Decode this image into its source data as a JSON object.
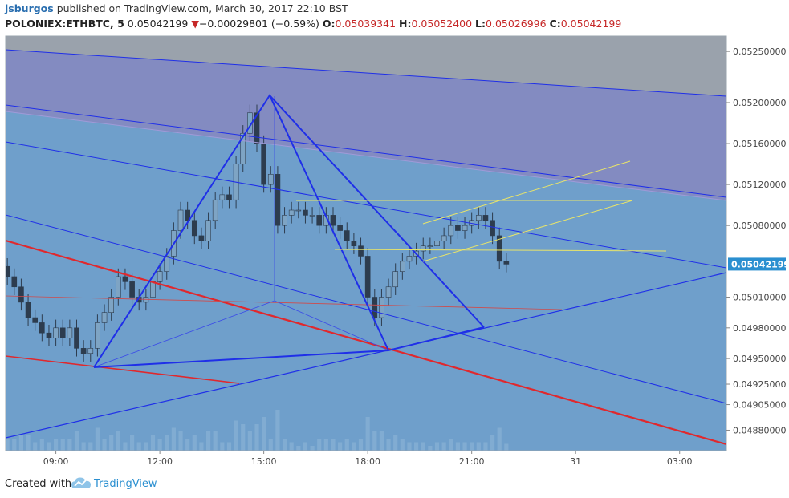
{
  "header": {
    "author": "jsburgos",
    "published_text": "published on TradingView.com, March 30, 2017 22:10 BST",
    "symbol": "POLONIEX:ETHBTC, 5",
    "last": "0.05042199",
    "change_arrow": "▼",
    "change": "−0.00029801 (−0.59%)",
    "o_label": "O:",
    "o_value": "0.05039341",
    "h_label": "H:",
    "h_value": "0.05052400",
    "l_label": "L:",
    "l_value": "0.05026996",
    "c_label": "C:",
    "c_value": "0.05042199"
  },
  "footer": {
    "created_with": "Created with",
    "brand": "TradingView",
    "logo_icon": "tradingview-cloud-icon"
  },
  "colors": {
    "pane_bg": "#6f9fcb",
    "channel_fill": "#8a84be",
    "gray_band": "#9aa2ac",
    "drawing_blue": "#1f2fe8",
    "drawing_red": "#e0282d",
    "trend_yellow": "#e8e46a",
    "candle_up": "#7ea4c4",
    "candle_down": "#2d3c4e",
    "price_tag": "#2a8fd0"
  },
  "chart_data": {
    "type": "candlestick",
    "title": "",
    "xlabel": "",
    "ylabel": "",
    "ylim": [
      0.0486,
      0.05265
    ],
    "y_ticks": [
      "0.05250000",
      "0.05200000",
      "0.05160000",
      "0.05120000",
      "0.05080000",
      "0.05042199",
      "0.05010000",
      "0.04980000",
      "0.04950000",
      "0.04925000",
      "0.04905000",
      "0.04880000"
    ],
    "y_tick_values": [
      0.0525,
      0.052,
      0.0516,
      0.0512,
      0.0508,
      0.05042199,
      0.0501,
      0.0498,
      0.0495,
      0.04925,
      0.04905,
      0.0488
    ],
    "x_ticks": [
      "09:00",
      "12:00",
      "15:00",
      "18:00",
      "21:00",
      "31",
      "03:00"
    ],
    "x_tick_hours": [
      9,
      12,
      15,
      18,
      21,
      24,
      27
    ],
    "x_range_hours": [
      7.55,
      28.35
    ],
    "last_price_label": "0.05042199",
    "last_price": 0.05042199,
    "grid": false,
    "candles_hours": [
      7.6,
      7.8,
      8.0,
      8.2,
      8.4,
      8.6,
      8.8,
      9.0,
      9.2,
      9.4,
      9.6,
      9.8,
      10.0,
      10.2,
      10.4,
      10.6,
      10.8,
      11.0,
      11.2,
      11.4,
      11.6,
      11.8,
      12.0,
      12.2,
      12.4,
      12.6,
      12.8,
      13.0,
      13.2,
      13.4,
      13.6,
      13.8,
      14.0,
      14.2,
      14.4,
      14.6,
      14.8,
      15.0,
      15.2,
      15.4,
      15.6,
      15.8,
      16.0,
      16.2,
      16.4,
      16.6,
      16.8,
      17.0,
      17.2,
      17.4,
      17.6,
      17.8,
      18.0,
      18.2,
      18.4,
      18.6,
      18.8,
      19.0,
      19.2,
      19.4,
      19.6,
      19.8,
      20.0,
      20.2,
      20.4,
      20.6,
      20.8,
      21.0,
      21.2,
      21.4,
      21.6,
      21.8,
      22.0
    ],
    "candles_close": [
      0.0503,
      0.0502,
      0.05005,
      0.0499,
      0.04985,
      0.04975,
      0.0497,
      0.0498,
      0.0497,
      0.0498,
      0.0496,
      0.04955,
      0.0496,
      0.04985,
      0.04995,
      0.0501,
      0.0503,
      0.05025,
      0.0501,
      0.05005,
      0.0501,
      0.05025,
      0.05035,
      0.0505,
      0.05075,
      0.05095,
      0.05085,
      0.0507,
      0.05065,
      0.05085,
      0.05105,
      0.0511,
      0.05105,
      0.0514,
      0.0517,
      0.0519,
      0.0516,
      0.0512,
      0.0513,
      0.0508,
      0.0509,
      0.05095,
      0.05095,
      0.0509,
      0.0509,
      0.0508,
      0.0509,
      0.0508,
      0.05075,
      0.05065,
      0.0506,
      0.0505,
      0.0501,
      0.0499,
      0.0501,
      0.0502,
      0.05035,
      0.05045,
      0.0505,
      0.05055,
      0.0506,
      0.0506,
      0.05065,
      0.0507,
      0.0508,
      0.05075,
      0.0508,
      0.05085,
      0.0509,
      0.05085,
      0.0507,
      0.05045,
      0.05042199
    ]
  }
}
